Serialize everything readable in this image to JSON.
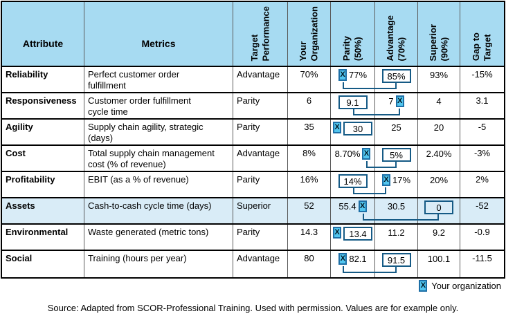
{
  "table": {
    "headers": {
      "attribute": "Attribute",
      "metrics": "Metrics",
      "target": "Target\nPerformance",
      "your_org": "Your\nOrganization",
      "parity": "Parity\n(50%)",
      "advantage": "Advantage\n(70%)",
      "superior": "Superior\n(90%)",
      "gap": "Gap to\nTarget"
    },
    "rows": [
      {
        "attribute": "Reliability",
        "metric": "Perfect customer order\nfulfillment",
        "target": "Advantage",
        "your_org": "70%",
        "bands": {
          "parity": {
            "value": "77%",
            "marker": "before",
            "boxed": false
          },
          "advantage": {
            "value": "85%",
            "boxed": true
          },
          "superior": {
            "value": "93%"
          }
        },
        "gap": "-15%",
        "connector": true,
        "highlight": false
      },
      {
        "attribute": "Responsiveness",
        "metric": "Customer order fulfillment\ncycle time",
        "target": "Parity",
        "your_org": "6",
        "bands": {
          "parity": {
            "value": "9.1",
            "boxed": true
          },
          "advantage": {
            "value": "7",
            "marker": "after",
            "boxed": false
          },
          "superior": {
            "value": "4"
          }
        },
        "gap": "3.1",
        "connector": true,
        "highlight": false
      },
      {
        "attribute": "Agility",
        "metric": "Supply chain agility, strategic\n(days)",
        "target": "Parity",
        "your_org": "35",
        "bands": {
          "parity": {
            "value": "30",
            "marker": "before",
            "boxed": true
          },
          "advantage": {
            "value": "25"
          },
          "superior": {
            "value": "20"
          }
        },
        "gap": "-5",
        "connector": false,
        "highlight": false
      },
      {
        "attribute": "Cost",
        "metric": "Total supply chain management\ncost (% of revenue)",
        "target": "Advantage",
        "your_org": "8%",
        "bands": {
          "parity": {
            "value": "8.70%",
            "marker": "after",
            "boxed": false
          },
          "advantage": {
            "value": "5%",
            "boxed": true
          },
          "superior": {
            "value": "2.40%"
          }
        },
        "gap": "-3%",
        "connector": true,
        "highlight": false
      },
      {
        "attribute": "Profitability",
        "metric": "EBIT (as a % of revenue)",
        "target": "Parity",
        "your_org": "16%",
        "bands": {
          "parity": {
            "value": "14%",
            "boxed": true
          },
          "advantage": {
            "value": "17%",
            "marker": "before",
            "boxed": false
          },
          "superior": {
            "value": "20%"
          }
        },
        "gap": "2%",
        "connector": true,
        "highlight": false
      },
      {
        "attribute": "Assets",
        "metric": "Cash-to-cash cycle time (days)",
        "target": "Superior",
        "your_org": "52",
        "bands": {
          "parity": {
            "value": "55.4",
            "marker": "after",
            "boxed": false
          },
          "advantage": {
            "value": "30.5"
          },
          "superior": {
            "value": "0",
            "boxed": true
          }
        },
        "gap": "-52",
        "connector": true,
        "highlight": true
      },
      {
        "attribute": "Environmental",
        "metric": "Waste generated (metric tons)",
        "target": "Parity",
        "your_org": "14.3",
        "bands": {
          "parity": {
            "value": "13.4",
            "marker": "before",
            "boxed": true
          },
          "advantage": {
            "value": "11.2"
          },
          "superior": {
            "value": "9.2"
          }
        },
        "gap": "-0.9",
        "connector": false,
        "highlight": false
      },
      {
        "attribute": "Social",
        "metric": "Training (hours per year)",
        "target": "Advantage",
        "your_org": "80",
        "bands": {
          "parity": {
            "value": "82.1",
            "marker": "before",
            "boxed": false
          },
          "advantage": {
            "value": "91.5",
            "boxed": true
          },
          "superior": {
            "value": "100.1"
          }
        },
        "gap": "-11.5",
        "connector": true,
        "highlight": false
      }
    ]
  },
  "legend": {
    "marker": "X",
    "label": "Your organization"
  },
  "source": "Source: Adapted from SCOR-Professional Training. Used with permission. Values are for example only.",
  "colors": {
    "header_bg": "#a7dbf2",
    "highlight_row_bg": "#d9ecf7",
    "marker_fill": "#52c5ee",
    "marker_border": "#1d6fa6",
    "accent_line": "#155a85"
  }
}
